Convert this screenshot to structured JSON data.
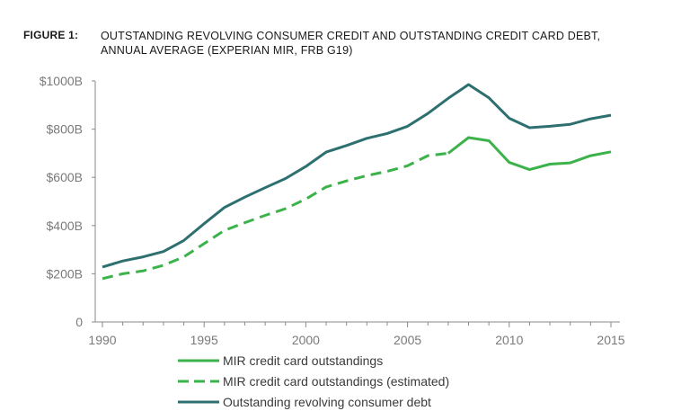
{
  "figure": {
    "label": "FIGURE 1:",
    "title_line1": "OUTSTANDING REVOLVING CONSUMER CREDIT AND OUTSTANDING CREDIT CARD DEBT,",
    "title_line2": "ANNUAL AVERAGE (EXPERIAN MIR, FRB G19)"
  },
  "chart_data": {
    "type": "line",
    "xlim": [
      1990,
      2015
    ],
    "ylim": [
      0,
      1000
    ],
    "x_ticks": [
      1990,
      1995,
      2000,
      2005,
      2010,
      2015
    ],
    "x_tick_labels": [
      "1990",
      "1995",
      "2000",
      "2005",
      "2010",
      "2015"
    ],
    "y_ticks": [
      0,
      200,
      400,
      600,
      800,
      1000
    ],
    "y_tick_labels": [
      "0",
      "$200B",
      "$400B",
      "$600B",
      "$800B",
      "$1000B"
    ],
    "grid": false,
    "legend_position": "bottom",
    "series": [
      {
        "name": "MIR credit card outstandings (estimated)",
        "color": "#3cb24a",
        "style": "dashed",
        "x": [
          1990,
          1991,
          1992,
          1993,
          1994,
          1995,
          1996,
          1997,
          1998,
          1999,
          2000,
          2001,
          2002,
          2003,
          2004,
          2005,
          2006,
          2007
        ],
        "y": [
          180,
          200,
          212,
          235,
          270,
          325,
          380,
          412,
          442,
          470,
          510,
          560,
          585,
          607,
          625,
          648,
          690,
          700
        ]
      },
      {
        "name": "MIR credit card outstandings",
        "color": "#3cb24a",
        "style": "solid",
        "x": [
          2007,
          2008,
          2009,
          2010,
          2011,
          2012,
          2013,
          2014,
          2015
        ],
        "y": [
          700,
          765,
          752,
          662,
          632,
          655,
          660,
          690,
          706
        ]
      },
      {
        "name": "Outstanding revolving consumer debt",
        "color": "#2e7070",
        "style": "solid",
        "x": [
          1990,
          1991,
          1992,
          1993,
          1994,
          1995,
          1996,
          1997,
          1998,
          1999,
          2000,
          2001,
          2002,
          2003,
          2004,
          2005,
          2006,
          2007,
          2008,
          2009,
          2010,
          2011,
          2012,
          2013,
          2014,
          2015
        ],
        "y": [
          228,
          253,
          270,
          292,
          338,
          408,
          475,
          518,
          557,
          595,
          645,
          705,
          732,
          762,
          782,
          812,
          865,
          928,
          985,
          930,
          845,
          806,
          812,
          820,
          843,
          858
        ]
      }
    ],
    "legend": [
      {
        "label": "MIR credit card outstandings",
        "color": "#3cb24a",
        "style": "solid"
      },
      {
        "label": "MIR credit card outstandings (estimated)",
        "color": "#3cb24a",
        "style": "dashed"
      },
      {
        "label": "Outstanding revolving consumer debt",
        "color": "#2e7070",
        "style": "solid"
      }
    ]
  }
}
